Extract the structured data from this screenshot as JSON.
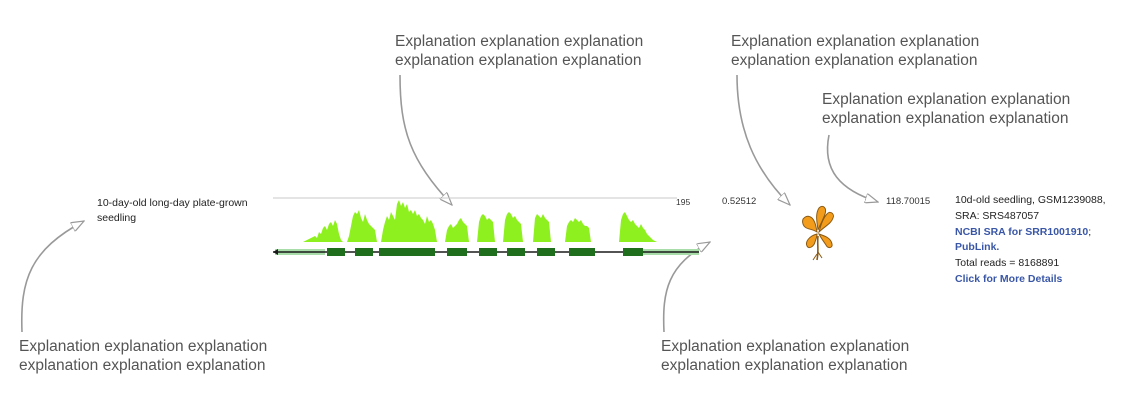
{
  "callouts": [
    {
      "line1": "Explanation explanation explanation",
      "line2": "explanation explanation explanation"
    },
    {
      "line1": "Explanation explanation explanation",
      "line2": "explanation explanation explanation"
    },
    {
      "line1": "Explanation explanation explanation",
      "line2": "explanation explanation explanation"
    },
    {
      "line1": "Explanation explanation explanation",
      "line2": "explanation explanation explanation"
    },
    {
      "line1": "Explanation explanation explanation",
      "line2": "explanation explanation explanation"
    }
  ],
  "sample": {
    "label": "10-day-old long-day plate-grown seedling",
    "track_max": "195",
    "ratio": "0.52512",
    "count": "118.70015",
    "icon": "seedling-icon",
    "details": {
      "line1": "10d-old seedling, GSM1239088,",
      "line2": "SRA: SRS487057",
      "link_sra": "NCBI SRA for SRR1001910",
      "link_sra_suffix": ";",
      "link_pub": "PubLink.",
      "total_reads": "Total reads = 8168891",
      "link_more": "Click for More Details"
    }
  },
  "colors": {
    "coverage": "#8ef01e",
    "exon": "#1e6e1e",
    "utr": "#a8dca8",
    "callout_text": "#555555",
    "link": "#3a57a7"
  }
}
